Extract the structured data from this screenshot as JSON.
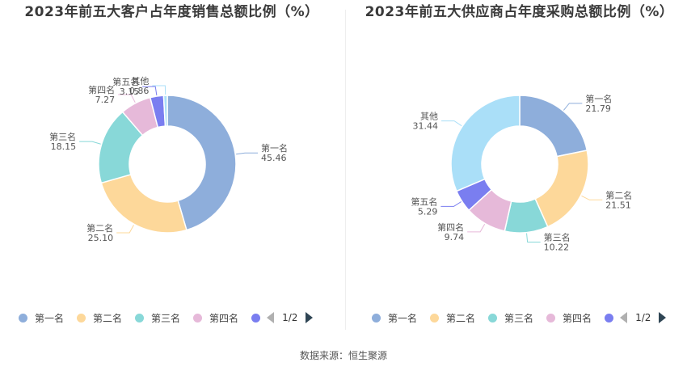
{
  "footer": {
    "source": "数据来源：恒生聚源"
  },
  "chart_data": [
    {
      "type": "pie",
      "title": "2023年前五大客户占年度销售总额比例（%）",
      "categories": [
        "第一名",
        "第二名",
        "第三名",
        "第四名",
        "第五名",
        "其他"
      ],
      "values": [
        45.46,
        25.1,
        18.15,
        7.27,
        3.15,
        0.86
      ],
      "value_labels": [
        "45.46",
        "25.10",
        "18.15",
        "7.27",
        "3.15",
        "0.86"
      ],
      "colors": [
        "#8eaedb",
        "#fdd89a",
        "#88d8d8",
        "#e6b9d9",
        "#7a7ef0",
        "#aadff8"
      ],
      "donut": true,
      "legend": {
        "position": "bottom",
        "visible_items": [
          "第一名",
          "第二名",
          "第三名",
          "第四名"
        ],
        "page": "1/2"
      }
    },
    {
      "type": "pie",
      "title": "2023年前五大供应商占年度采购总额比例（%）",
      "categories": [
        "第一名",
        "第二名",
        "第三名",
        "第四名",
        "第五名",
        "其他"
      ],
      "values": [
        21.79,
        21.51,
        10.22,
        9.74,
        5.29,
        31.44
      ],
      "value_labels": [
        "21.79",
        "21.51",
        "10.22",
        "9.74",
        "5.29",
        "31.44"
      ],
      "colors": [
        "#8eaedb",
        "#fdd89a",
        "#88d8d8",
        "#e6b9d9",
        "#7a7ef0",
        "#aadff8"
      ],
      "donut": true,
      "legend": {
        "position": "bottom",
        "visible_items": [
          "第一名",
          "第二名",
          "第三名",
          "第四名"
        ],
        "page": "1/2"
      }
    }
  ]
}
